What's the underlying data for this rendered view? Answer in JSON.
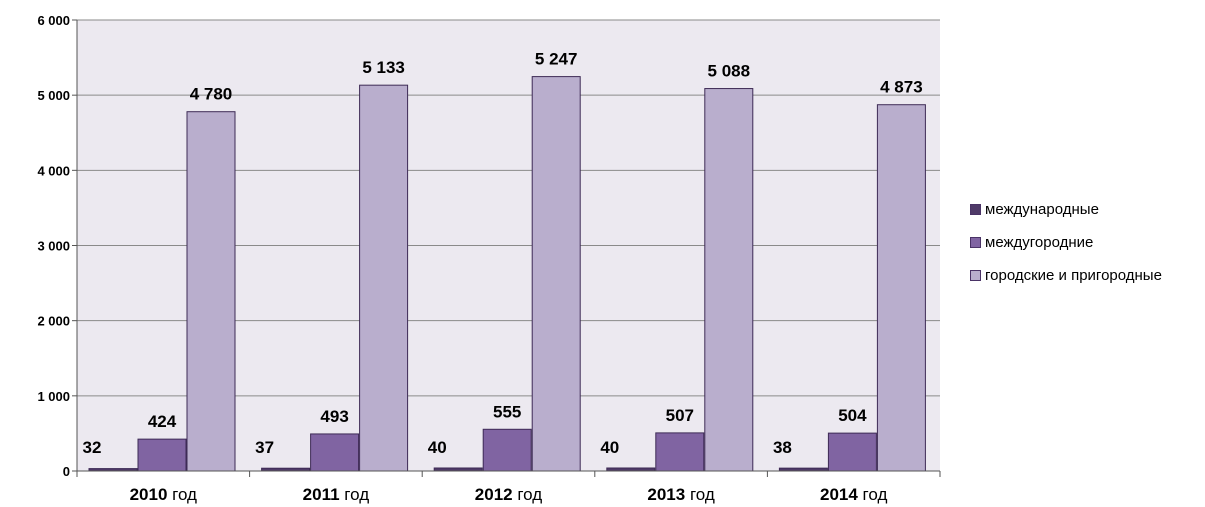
{
  "chart_data": {
    "type": "bar",
    "categories": [
      {
        "year": "2010",
        "suffix": " год"
      },
      {
        "year": "2011",
        "suffix": " год"
      },
      {
        "year": "2012",
        "suffix": " год"
      },
      {
        "year": "2013",
        "suffix": " год"
      },
      {
        "year": "2014",
        "suffix": " год"
      }
    ],
    "series": [
      {
        "name": "международные",
        "color": "#4f3a68",
        "values": [
          32,
          37,
          40,
          40,
          38
        ],
        "labels": [
          "32",
          "37",
          "40",
          "40",
          "38"
        ]
      },
      {
        "name": "междугородние",
        "color": "#8064a2",
        "values": [
          424,
          493,
          555,
          507,
          504
        ],
        "labels": [
          "424",
          "493",
          "555",
          "507",
          "504"
        ]
      },
      {
        "name": "городские и пригородные",
        "color": "#b9aecd",
        "values": [
          4780,
          5133,
          5247,
          5088,
          4873
        ],
        "labels": [
          "4 780",
          "5 133",
          "5 247",
          "5 088",
          "4 873"
        ]
      }
    ],
    "ylim": [
      0,
      6000
    ],
    "yticks": [
      0,
      1000,
      2000,
      3000,
      4000,
      5000,
      6000
    ],
    "ytick_labels": [
      "0",
      "1 000",
      "2 000",
      "3 000",
      "4 000",
      "5 000",
      "6 000"
    ],
    "grid": true,
    "plot_background": "#ece9f0",
    "legend_position": "right"
  }
}
